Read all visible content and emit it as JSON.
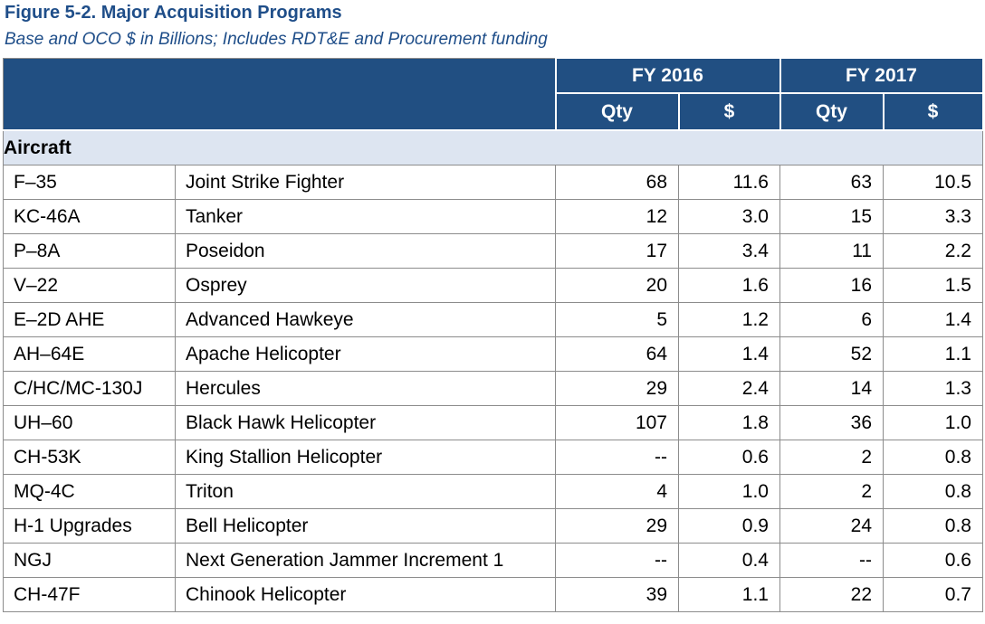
{
  "title": "Figure 5-2.  Major Acquisition Programs",
  "subtitle": "Base and OCO $ in Billions; Includes RDT&E and Procurement funding",
  "header": {
    "fy2016": "FY 2016",
    "fy2017": "FY 2017",
    "qty": "Qty",
    "dollars": "$"
  },
  "section": "Aircraft",
  "rows": [
    {
      "program": "F–35",
      "name": "Joint Strike Fighter",
      "qty16": "68",
      "amt16": "11.6",
      "qty17": "63",
      "amt17": "10.5"
    },
    {
      "program": "KC-46A",
      "name": "Tanker",
      "qty16": "12",
      "amt16": "3.0",
      "qty17": "15",
      "amt17": "3.3"
    },
    {
      "program": "P–8A",
      "name": "Poseidon",
      "qty16": "17",
      "amt16": "3.4",
      "qty17": "11",
      "amt17": "2.2"
    },
    {
      "program": "V–22",
      "name": "Osprey",
      "qty16": "20",
      "amt16": "1.6",
      "qty17": "16",
      "amt17": "1.5"
    },
    {
      "program": "E–2D AHE",
      "name": "Advanced Hawkeye",
      "qty16": "5",
      "amt16": "1.2",
      "qty17": "6",
      "amt17": "1.4"
    },
    {
      "program": "AH–64E",
      "name": "Apache Helicopter",
      "qty16": "64",
      "amt16": "1.4",
      "qty17": "52",
      "amt17": "1.1"
    },
    {
      "program": "C/HC/MC-130J",
      "name": "Hercules",
      "qty16": "29",
      "amt16": "2.4",
      "qty17": "14",
      "amt17": "1.3"
    },
    {
      "program": "UH–60",
      "name": "Black Hawk Helicopter",
      "qty16": "107",
      "amt16": "1.8",
      "qty17": "36",
      "amt17": "1.0"
    },
    {
      "program": "CH-53K",
      "name": "King Stallion Helicopter",
      "qty16": "--",
      "amt16": "0.6",
      "qty17": "2",
      "amt17": "0.8"
    },
    {
      "program": "MQ-4C",
      "name": "Triton",
      "qty16": "4",
      "amt16": "1.0",
      "qty17": "2",
      "amt17": "0.8"
    },
    {
      "program": "H-1 Upgrades",
      "name": "Bell Helicopter",
      "qty16": "29",
      "amt16": "0.9",
      "qty17": "24",
      "amt17": "0.8"
    },
    {
      "program": "NGJ",
      "name": "Next Generation Jammer Increment 1",
      "qty16": "--",
      "amt16": "0.4",
      "qty17": "--",
      "amt17": "0.6"
    },
    {
      "program": "CH-47F",
      "name": "Chinook Helicopter",
      "qty16": "39",
      "amt16": "1.1",
      "qty17": "22",
      "amt17": "0.7"
    }
  ]
}
